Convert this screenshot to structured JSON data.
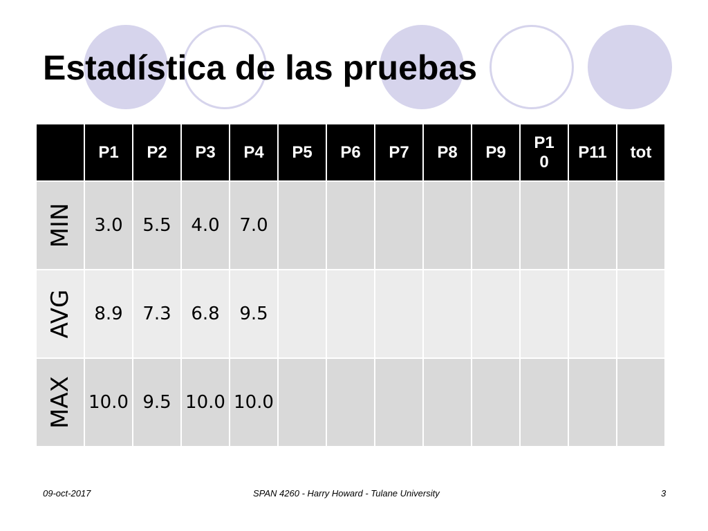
{
  "slide": {
    "title": "Estadística de las pruebas",
    "footer": {
      "date": "09-oct-2017",
      "course": "SPAN 4260 - Harry Howard - Tulane University",
      "page": "3"
    }
  },
  "table": {
    "headers": [
      "P1",
      "P2",
      "P3",
      "P4",
      "P5",
      "P6",
      "P7",
      "P8",
      "P9",
      "P10",
      "P11",
      "tot"
    ],
    "rows": [
      {
        "label": "MIN",
        "values": [
          "3.0",
          "5.5",
          "4.0",
          "7.0",
          "",
          "",
          "",
          "",
          "",
          "",
          "",
          ""
        ]
      },
      {
        "label": "AVG",
        "values": [
          "8.9",
          "7.3",
          "6.8",
          "9.5",
          "",
          "",
          "",
          "",
          "",
          "",
          "",
          ""
        ]
      },
      {
        "label": "MAX",
        "values": [
          "10.0",
          "9.5",
          "10.0",
          "10.0",
          "",
          "",
          "",
          "",
          "",
          "",
          "",
          ""
        ]
      }
    ]
  },
  "colors": {
    "accent_circle": "#d6d4ec",
    "header_bg": "#000000",
    "row_dark": "#d9d9d9",
    "row_light": "#ececec"
  }
}
